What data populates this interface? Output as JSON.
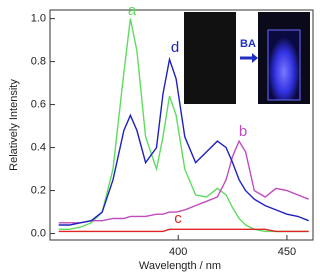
{
  "chart_data": {
    "type": "line",
    "x_label": "Wavelength / nm",
    "y_label": "Relatively Intensity",
    "x": [
      345,
      350,
      355,
      360,
      365,
      370,
      375,
      378,
      381,
      385,
      390,
      393,
      396,
      399,
      403,
      408,
      413,
      418,
      422,
      425,
      428,
      431,
      435,
      440,
      445,
      450,
      455,
      460
    ],
    "series": [
      {
        "name": "a",
        "color": "#5fdc5f",
        "values": [
          0.02,
          0.02,
          0.03,
          0.05,
          0.1,
          0.3,
          0.75,
          1.0,
          0.85,
          0.45,
          0.3,
          0.45,
          0.64,
          0.55,
          0.3,
          0.18,
          0.17,
          0.21,
          0.18,
          0.12,
          0.07,
          0.04,
          0.02,
          0.01,
          0.01,
          0.01,
          0.01,
          0.01
        ]
      },
      {
        "name": "b",
        "color": "#c04cc0",
        "values": [
          0.05,
          0.05,
          0.05,
          0.06,
          0.06,
          0.07,
          0.07,
          0.08,
          0.08,
          0.08,
          0.09,
          0.09,
          0.1,
          0.1,
          0.11,
          0.13,
          0.15,
          0.17,
          0.25,
          0.36,
          0.43,
          0.38,
          0.2,
          0.17,
          0.21,
          0.2,
          0.18,
          0.16
        ]
      },
      {
        "name": "c",
        "color": "#e02424",
        "values": [
          0.01,
          0.01,
          0.01,
          0.01,
          0.01,
          0.01,
          0.01,
          0.01,
          0.01,
          0.01,
          0.01,
          0.01,
          0.02,
          0.02,
          0.02,
          0.02,
          0.02,
          0.02,
          0.02,
          0.02,
          0.02,
          0.02,
          0.02,
          0.02,
          0.01,
          0.01,
          0.01,
          0.01
        ]
      },
      {
        "name": "d",
        "color": "#2020c0",
        "values": [
          0.04,
          0.04,
          0.05,
          0.06,
          0.1,
          0.25,
          0.48,
          0.55,
          0.48,
          0.33,
          0.4,
          0.65,
          0.81,
          0.72,
          0.45,
          0.33,
          0.38,
          0.43,
          0.4,
          0.33,
          0.25,
          0.2,
          0.16,
          0.13,
          0.11,
          0.09,
          0.08,
          0.06
        ]
      }
    ],
    "xlim": [
      341,
      462
    ],
    "ylim": [
      -0.03,
      1.04
    ],
    "xticks": [
      400,
      450
    ],
    "yticks": [
      {
        "value": 0,
        "label": "0.0"
      },
      {
        "value": 0.2,
        "label": "0.2"
      },
      {
        "value": 0.4,
        "label": "0.4"
      },
      {
        "value": 0.6,
        "label": "0.6"
      },
      {
        "value": 0.8,
        "label": "0.8"
      },
      {
        "value": 1.0,
        "label": "1.0"
      }
    ],
    "inset_label": "BA"
  }
}
